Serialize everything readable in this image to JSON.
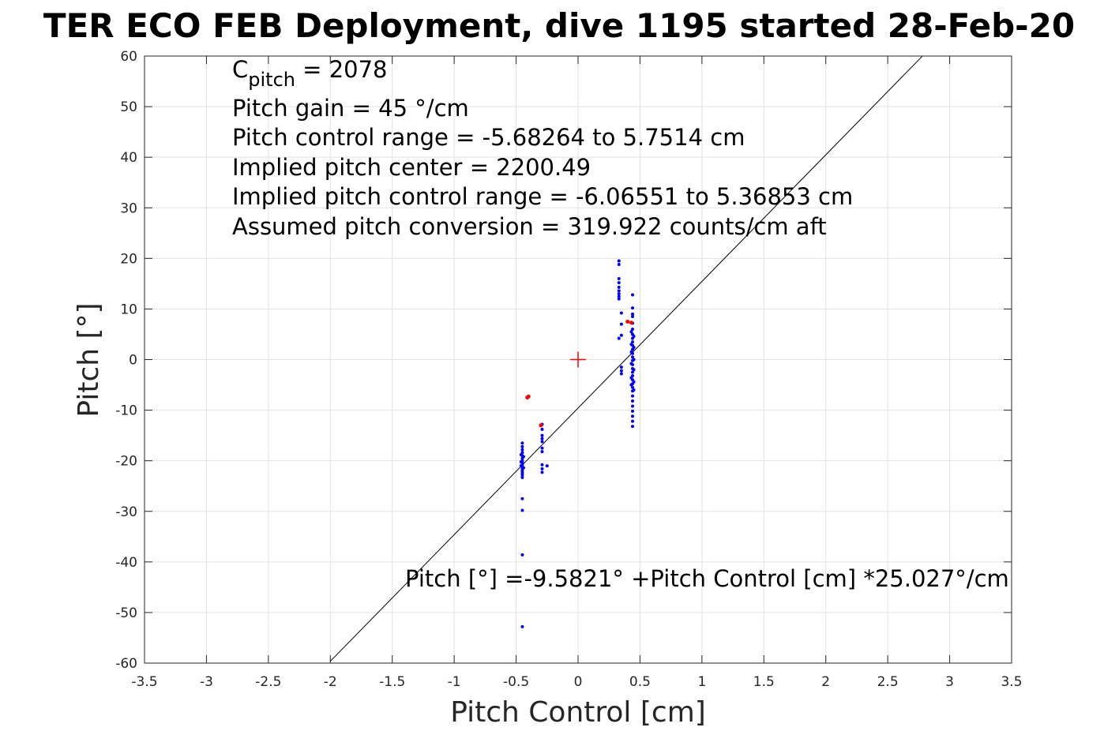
{
  "chart_data": {
    "type": "scatter",
    "title": "TER ECO FEB Deployment, dive 1195 started 28-Feb-20",
    "xlabel": "Pitch Control [cm]",
    "ylabel": "Pitch [°]",
    "xlim": [
      -3.5,
      3.5
    ],
    "ylim": [
      -60,
      60
    ],
    "x_ticks": [
      -3.5,
      -3,
      -2.5,
      -2,
      -1.5,
      -1,
      -0.5,
      0,
      0.5,
      1,
      1.5,
      2,
      2.5,
      3,
      3.5
    ],
    "x_tick_labels": [
      "-3.5",
      "-3",
      "-2.5",
      "-2",
      "-1.5",
      "-1",
      "-0.5",
      "0",
      "0.5",
      "1",
      "1.5",
      "2",
      "2.5",
      "3",
      "3.5"
    ],
    "y_ticks": [
      -60,
      -50,
      -40,
      -30,
      -20,
      -10,
      0,
      10,
      20,
      30,
      40,
      50,
      60
    ],
    "y_tick_labels": [
      "-60",
      "-50",
      "-40",
      "-30",
      "-20",
      "-10",
      "0",
      "10",
      "20",
      "30",
      "40",
      "50",
      "60"
    ],
    "grid": true,
    "colors": {
      "points": "#0000ff",
      "excluded": "#ff0000",
      "fit_line": "#000000",
      "center_marker": "#ff0000"
    },
    "series": [
      {
        "points": [
          [
            -0.45,
            -16.5
          ],
          [
            -0.45,
            -17.2
          ],
          [
            -0.45,
            -17.8
          ],
          [
            -0.45,
            -18.4
          ],
          [
            -0.45,
            -19.0
          ],
          [
            -0.45,
            -19.5
          ],
          [
            -0.45,
            -20.0
          ],
          [
            -0.45,
            -20.4
          ],
          [
            -0.45,
            -20.8
          ],
          [
            -0.45,
            -21.2
          ],
          [
            -0.45,
            -21.6
          ],
          [
            -0.45,
            -22.0
          ],
          [
            -0.45,
            -22.4
          ],
          [
            -0.45,
            -22.8
          ],
          [
            -0.45,
            -23.3
          ],
          [
            -0.45,
            -27.5
          ],
          [
            -0.45,
            -29.8
          ],
          [
            -0.45,
            -38.6
          ],
          [
            -0.45,
            -52.8
          ],
          [
            -0.46,
            -18.8
          ],
          [
            -0.46,
            -20.2
          ],
          [
            -0.46,
            -21.0
          ],
          [
            -0.44,
            -19.2
          ],
          [
            -0.44,
            -21.4
          ],
          [
            -0.29,
            -12.8
          ],
          [
            -0.29,
            -13.8
          ],
          [
            -0.29,
            -15.0
          ],
          [
            -0.29,
            -15.6
          ],
          [
            -0.29,
            -16.2
          ],
          [
            -0.29,
            -17.5
          ],
          [
            -0.29,
            -18.2
          ],
          [
            -0.29,
            -20.8
          ],
          [
            -0.29,
            -21.6
          ],
          [
            -0.29,
            -22.3
          ],
          [
            -0.25,
            -21.0
          ],
          [
            0.33,
            19.5
          ],
          [
            0.33,
            18.8
          ],
          [
            0.33,
            16.0
          ],
          [
            0.33,
            15.2
          ],
          [
            0.33,
            14.3
          ],
          [
            0.33,
            13.6
          ],
          [
            0.33,
            13.0
          ],
          [
            0.33,
            12.5
          ],
          [
            0.33,
            12.0
          ],
          [
            0.33,
            4.2
          ],
          [
            0.35,
            9.2
          ],
          [
            0.35,
            7.0
          ],
          [
            0.35,
            4.8
          ],
          [
            0.35,
            -1.5
          ],
          [
            0.35,
            -2.2
          ],
          [
            0.35,
            -2.8
          ],
          [
            0.44,
            12.8
          ],
          [
            0.44,
            10.2
          ],
          [
            0.44,
            9.0
          ],
          [
            0.44,
            8.5
          ],
          [
            0.44,
            7.2
          ],
          [
            0.44,
            6.0
          ],
          [
            0.44,
            5.0
          ],
          [
            0.44,
            4.2
          ],
          [
            0.44,
            3.5
          ],
          [
            0.44,
            2.8
          ],
          [
            0.44,
            2.0
          ],
          [
            0.44,
            1.2
          ],
          [
            0.44,
            0.5
          ],
          [
            0.44,
            -0.2
          ],
          [
            0.44,
            -1.0
          ],
          [
            0.44,
            -1.8
          ],
          [
            0.44,
            -2.5
          ],
          [
            0.44,
            -3.2
          ],
          [
            0.44,
            -4.0
          ],
          [
            0.44,
            -4.8
          ],
          [
            0.44,
            -5.5
          ],
          [
            0.44,
            -6.2
          ],
          [
            0.44,
            -7.2
          ],
          [
            0.44,
            -8.2
          ],
          [
            0.44,
            -9.2
          ],
          [
            0.44,
            -10.2
          ],
          [
            0.44,
            -11.2
          ],
          [
            0.44,
            -12.2
          ],
          [
            0.44,
            -13.2
          ],
          [
            0.43,
            5.5
          ],
          [
            0.43,
            3.0
          ],
          [
            0.43,
            1.5
          ],
          [
            0.43,
            -0.8
          ],
          [
            0.43,
            -3.6
          ],
          [
            0.43,
            -5.0
          ],
          [
            0.45,
            4.6
          ],
          [
            0.45,
            2.4
          ],
          [
            0.45,
            0.0
          ],
          [
            0.45,
            -2.0
          ],
          [
            0.45,
            -4.4
          ],
          [
            0.45,
            -6.0
          ]
        ]
      },
      {
        "points": [
          [
            -0.4,
            -7.3
          ],
          [
            -0.41,
            -7.5
          ],
          [
            -0.3,
            -13.0
          ],
          [
            0.4,
            7.5
          ],
          [
            0.43,
            7.3
          ]
        ]
      }
    ],
    "fit_line": {
      "intercept": -9.5821,
      "slope": 25.027,
      "x_range": [
        -2.0,
        2.78
      ]
    },
    "center_marker": [
      0,
      0
    ],
    "annotations": {
      "c_pitch_symbol": "C",
      "c_pitch_subscript": "pitch",
      "c_pitch_value": " = 2078",
      "lines": [
        "Pitch gain = 45 °/cm",
        "Pitch control range = -5.68264 to 5.7514 cm",
        "Implied pitch center = 2200.49",
        "Implied pitch control range = -6.06551 to 5.36853 cm",
        "Assumed pitch conversion = 319.922 counts/cm aft"
      ],
      "fit_equation": "Pitch [°] =-9.5821° +Pitch Control [cm] *25.027°/cm"
    }
  }
}
